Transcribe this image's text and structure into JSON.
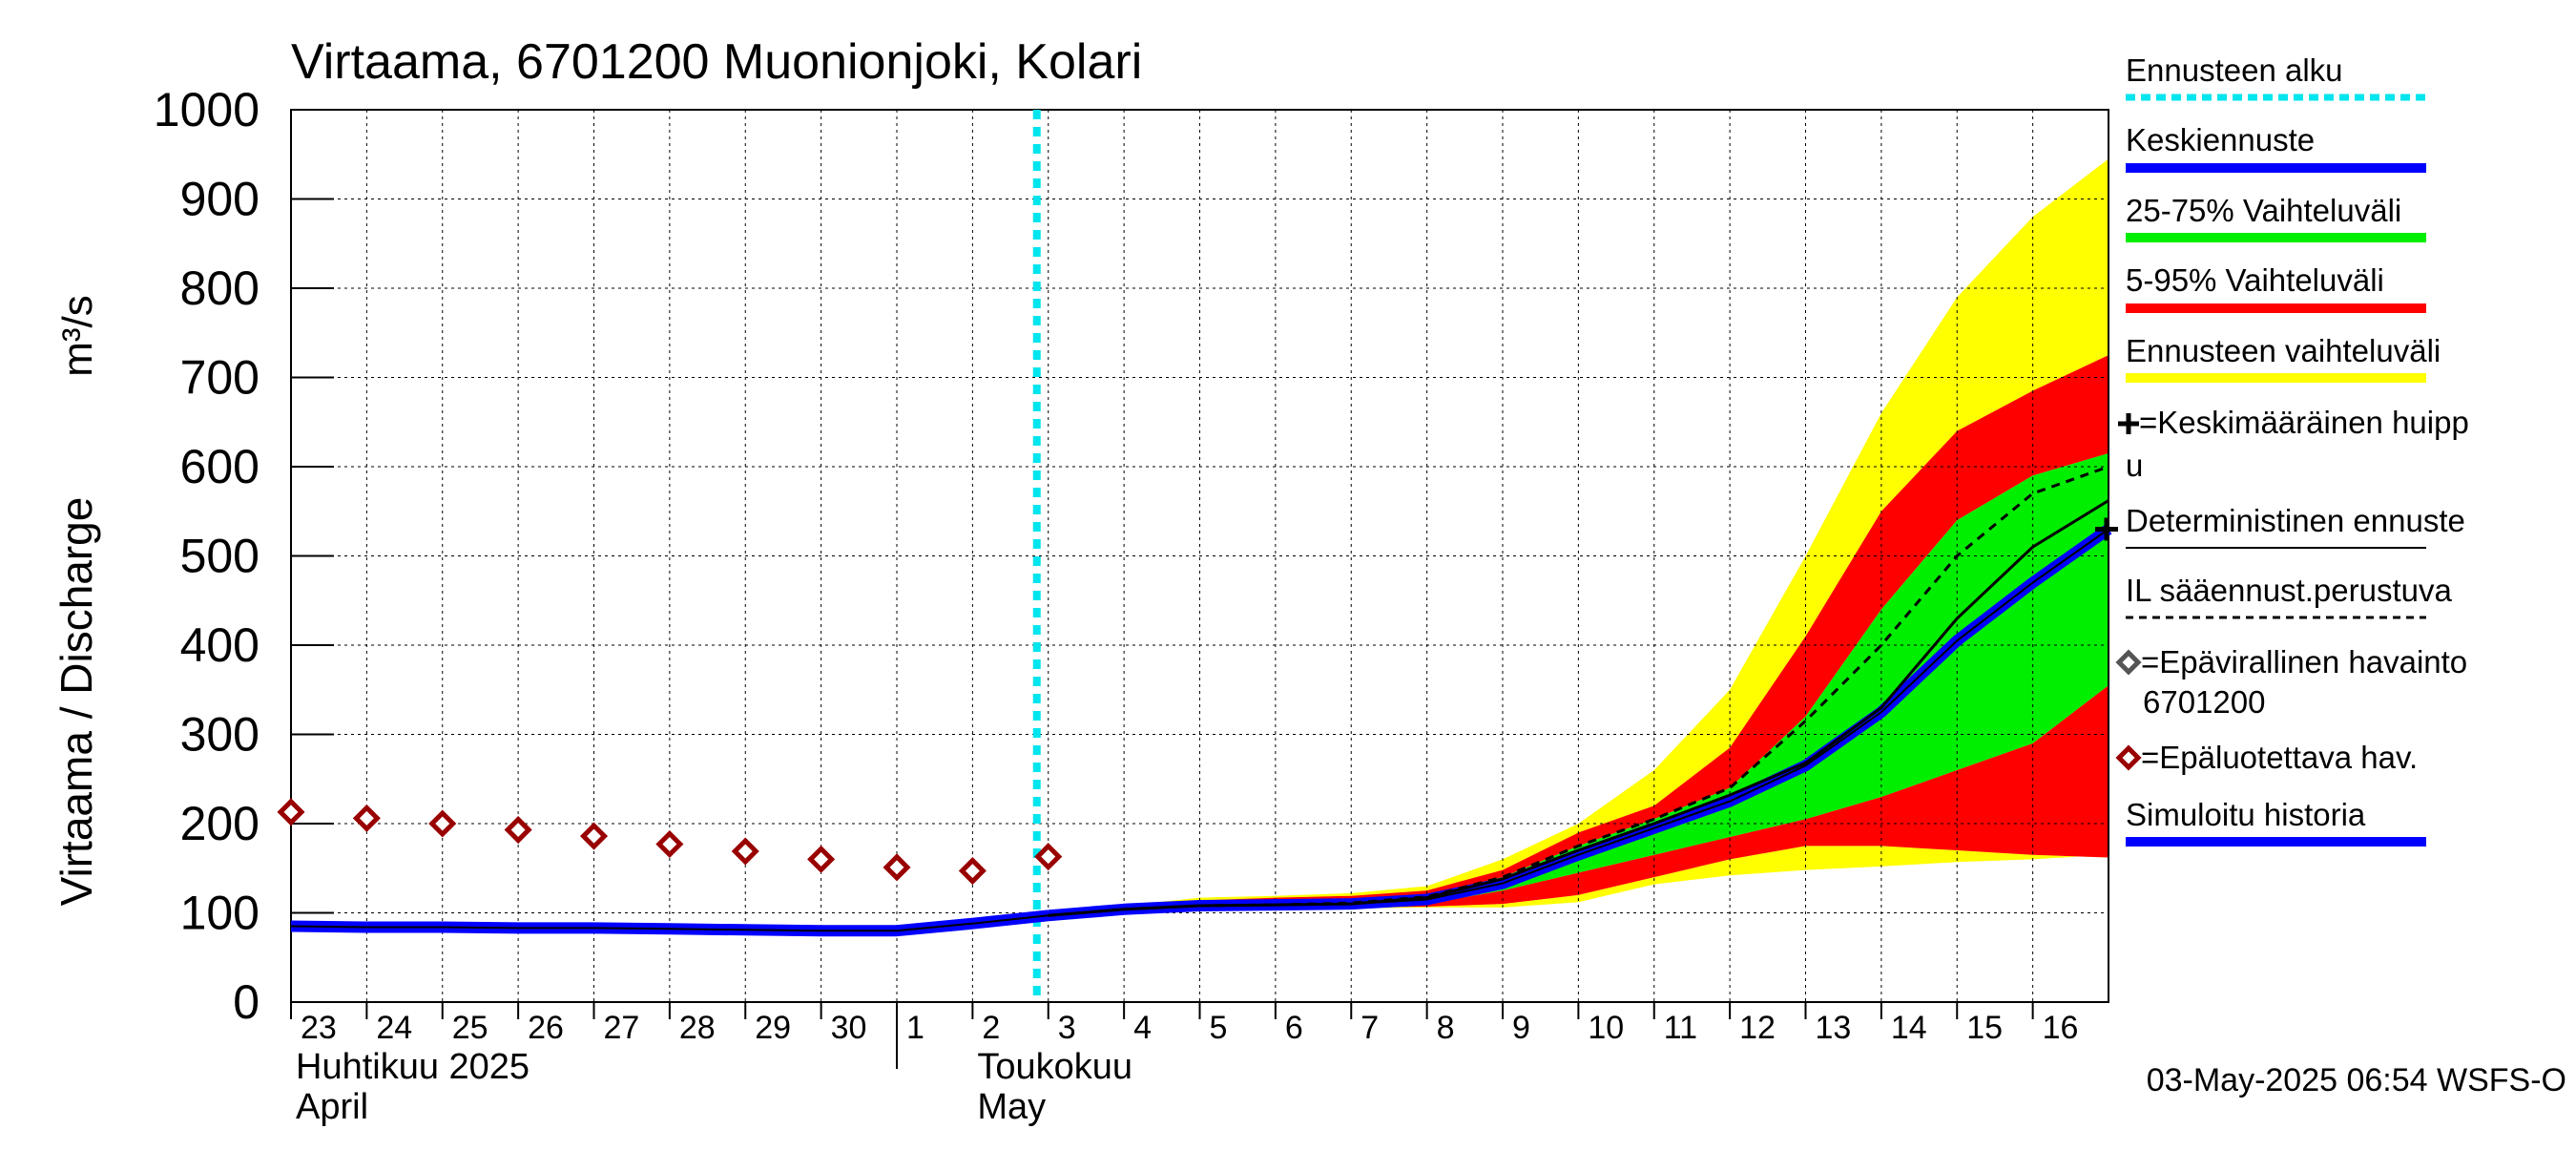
{
  "chart_data": {
    "type": "area",
    "title": "Virtaama, 6701200 Muonionjoki, Kolari",
    "ylabel": "Virtaama / Discharge",
    "yunit": "m³/s",
    "ylim": [
      0,
      1000
    ],
    "yticks": [
      0,
      100,
      200,
      300,
      400,
      500,
      600,
      700,
      800,
      900,
      1000
    ],
    "x_dates": [
      "2025-04-23",
      "2025-04-24",
      "2025-04-25",
      "2025-04-26",
      "2025-04-27",
      "2025-04-28",
      "2025-04-29",
      "2025-04-30",
      "2025-05-01",
      "2025-05-02",
      "2025-05-03",
      "2025-05-04",
      "2025-05-05",
      "2025-05-06",
      "2025-05-07",
      "2025-05-08",
      "2025-05-09",
      "2025-05-10",
      "2025-05-11",
      "2025-05-12",
      "2025-05-13",
      "2025-05-14",
      "2025-05-15",
      "2025-05-16"
    ],
    "xlim": [
      "2025-04-23",
      "2025-05-17"
    ],
    "day_labels": [
      "23",
      "24",
      "25",
      "26",
      "27",
      "28",
      "29",
      "30",
      "1",
      "2",
      "3",
      "4",
      "5",
      "6",
      "7",
      "8",
      "9",
      "10",
      "11",
      "12",
      "13",
      "14",
      "15",
      "16"
    ],
    "month_labels": [
      {
        "line1": "Huhtikuu  2025",
        "line2": "April",
        "date": "2025-04-23"
      },
      {
        "line1": "Toukokuu",
        "line2": "May",
        "date": "2025-05-02"
      }
    ],
    "grid": true,
    "forecast_start": "2025-05-03",
    "timestamp": "03-May-2025 06:54 WSFS-O",
    "legend": [
      {
        "label": "Ennusteen alku",
        "color": "#00e5ee",
        "style": "dotted"
      },
      {
        "label": "Keskiennuste",
        "color": "#0000ff",
        "style": "thick"
      },
      {
        "label": "25-75% Vaihteluväli",
        "color": "#00ee00",
        "style": "thick"
      },
      {
        "label": "5-95% Vaihteluväli",
        "color": "#ff0000",
        "style": "thick"
      },
      {
        "label": "Ennusteen vaihteluväli",
        "color": "#ffff00",
        "style": "thick"
      },
      {
        "label": "=Keskimääräinen huipp",
        "label2": "u",
        "color": "#000000",
        "style": "plus"
      },
      {
        "label": "Deterministinen ennuste",
        "color": "#000000",
        "style": "thin"
      },
      {
        "label": "IL sääennust.perustuva",
        "color": "#000000",
        "style": "dashed"
      },
      {
        "label": "=Epävirallinen havainto",
        "label2": "6701200",
        "color": "#555555",
        "style": "diamond"
      },
      {
        "label": "=Epäluotettava hav.",
        "color": "#990000",
        "style": "diamond"
      },
      {
        "label": "Simuloitu historia",
        "color": "#0000ff",
        "style": "thick"
      }
    ],
    "bands": {
      "x": [
        "2025-05-01",
        "2025-05-02",
        "2025-05-03",
        "2025-05-04",
        "2025-05-05",
        "2025-05-06",
        "2025-05-07",
        "2025-05-08",
        "2025-05-09",
        "2025-05-10",
        "2025-05-11",
        "2025-05-12",
        "2025-05-13",
        "2025-05-14",
        "2025-05-15",
        "2025-05-16",
        "2025-05-17"
      ],
      "full_max": [
        82,
        90,
        100,
        108,
        117,
        119,
        122,
        130,
        160,
        200,
        260,
        350,
        500,
        660,
        790,
        880,
        945
      ],
      "p95": [
        82,
        90,
        100,
        107,
        114,
        117,
        119,
        125,
        148,
        190,
        220,
        285,
        410,
        550,
        640,
        685,
        725
      ],
      "p75": [
        82,
        90,
        99,
        106,
        110,
        113,
        115,
        120,
        140,
        175,
        205,
        240,
        320,
        440,
        540,
        590,
        615
      ],
      "p25": [
        82,
        89,
        97,
        103,
        106,
        107,
        108,
        110,
        125,
        145,
        165,
        185,
        205,
        230,
        260,
        290,
        355
      ],
      "p5": [
        82,
        88,
        95,
        101,
        104,
        105,
        106,
        107,
        110,
        120,
        140,
        160,
        175,
        175,
        170,
        165,
        162
      ],
      "full_min": [
        82,
        87,
        94,
        100,
        103,
        104,
        105,
        106,
        106,
        112,
        132,
        142,
        148,
        152,
        157,
        160,
        165
      ]
    },
    "series": [
      {
        "name": "Simuloitu historia",
        "color": "#0000ff",
        "x": [
          "2025-04-23",
          "2025-04-24",
          "2025-04-25",
          "2025-04-26",
          "2025-04-27",
          "2025-04-28",
          "2025-04-29",
          "2025-04-30",
          "2025-05-01",
          "2025-05-02",
          "2025-05-03"
        ],
        "values": [
          85,
          84,
          84,
          83,
          83,
          82,
          81,
          80,
          80,
          88,
          97
        ]
      },
      {
        "name": "Keskiennuste",
        "color": "#0000ff",
        "x": [
          "2025-05-03",
          "2025-05-04",
          "2025-05-05",
          "2025-05-06",
          "2025-05-07",
          "2025-05-08",
          "2025-05-09",
          "2025-05-10",
          "2025-05-11",
          "2025-05-12",
          "2025-05-13",
          "2025-05-14",
          "2025-05-15",
          "2025-05-16",
          "2025-05-17"
        ],
        "values": [
          97,
          104,
          108,
          109,
          110,
          115,
          133,
          165,
          195,
          225,
          265,
          325,
          405,
          470,
          530
        ]
      },
      {
        "name": "Deterministinen ennuste",
        "color": "#000000",
        "x": [
          "2025-05-03",
          "2025-05-04",
          "2025-05-05",
          "2025-05-06",
          "2025-05-07",
          "2025-05-08",
          "2025-05-09",
          "2025-05-10",
          "2025-05-11",
          "2025-05-12",
          "2025-05-13",
          "2025-05-14",
          "2025-05-15",
          "2025-05-16",
          "2025-05-17"
        ],
        "values": [
          97,
          104,
          108,
          109,
          110,
          117,
          138,
          170,
          200,
          232,
          268,
          330,
          430,
          510,
          562
        ]
      },
      {
        "name": "IL sääennust.perustuva",
        "color": "#000000",
        "x": [
          "2025-05-03",
          "2025-05-04",
          "2025-05-05",
          "2025-05-06",
          "2025-05-07",
          "2025-05-08",
          "2025-05-09",
          "2025-05-10",
          "2025-05-11",
          "2025-05-12",
          "2025-05-13",
          "2025-05-14",
          "2025-05-15",
          "2025-05-16",
          "2025-05-17"
        ],
        "values": [
          97,
          104,
          108,
          109,
          111,
          118,
          140,
          175,
          205,
          240,
          315,
          400,
          500,
          570,
          600
        ]
      }
    ],
    "observations_unreliable": {
      "x": [
        "2025-04-23",
        "2025-04-24",
        "2025-04-25",
        "2025-04-26",
        "2025-04-27",
        "2025-04-28",
        "2025-04-29",
        "2025-04-30",
        "2025-05-01",
        "2025-05-02",
        "2025-05-03"
      ],
      "values": [
        213,
        206,
        200,
        193,
        186,
        177,
        169,
        160,
        151,
        147,
        163
      ]
    },
    "mean_peak": {
      "x": "2025-05-17",
      "value": 530
    }
  }
}
